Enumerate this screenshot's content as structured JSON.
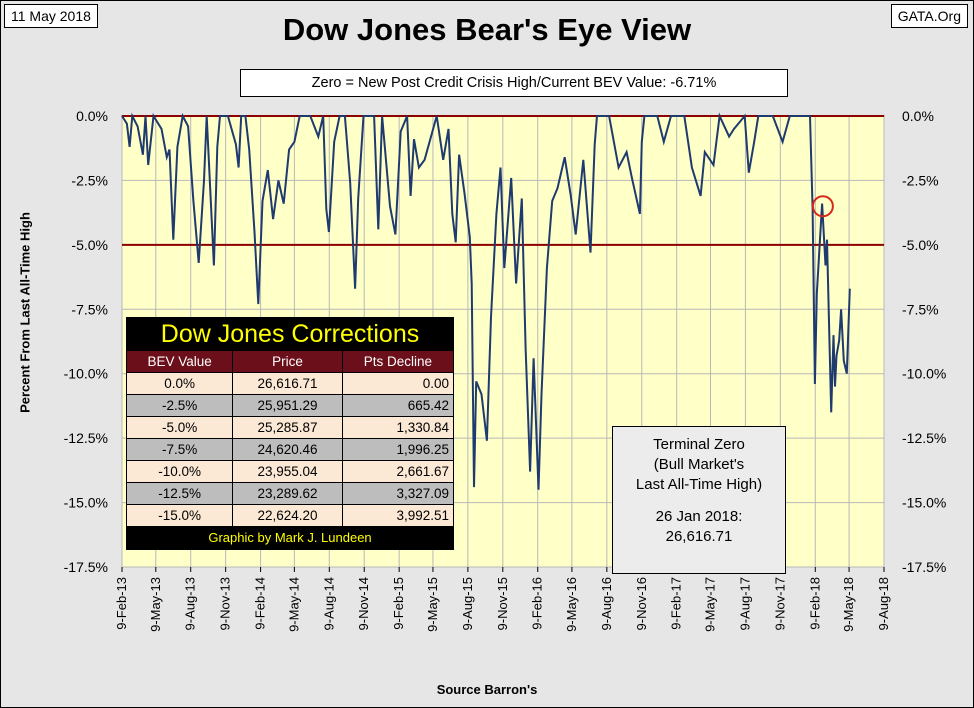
{
  "header": {
    "date": "11 May 2018",
    "source_tag": "GATA.Org",
    "title": "Dow Jones Bear's Eye View",
    "subtitle": "Zero = New Post Credit Crisis High/Current BEV Value:  -6.71%"
  },
  "axes": {
    "ylabel": "Percent From Last All-Time High",
    "xlabel": "Source Barron's",
    "y_ticks": [
      "0.0%",
      "-2.5%",
      "-5.0%",
      "-7.5%",
      "-10.0%",
      "-12.5%",
      "-15.0%",
      "-17.5%"
    ],
    "x_ticks": [
      "9-Feb-13",
      "9-May-13",
      "9-Aug-13",
      "9-Nov-13",
      "9-Feb-14",
      "9-May-14",
      "9-Aug-14",
      "9-Nov-14",
      "9-Feb-15",
      "9-May-15",
      "9-Aug-15",
      "9-Nov-15",
      "9-Feb-16",
      "9-May-16",
      "9-Aug-16",
      "9-Nov-16",
      "9-Feb-17",
      "9-May-17",
      "9-Aug-17",
      "9-Nov-17",
      "9-Feb-18",
      "9-May-18",
      "9-Aug-18"
    ]
  },
  "corrections_table": {
    "title": "Dow Jones Corrections",
    "headers": [
      "BEV Value",
      "Price",
      "Pts Decline"
    ],
    "rows": [
      [
        "0.0%",
        "26,616.71",
        "0.00"
      ],
      [
        "-2.5%",
        "25,951.29",
        "665.42"
      ],
      [
        "-5.0%",
        "25,285.87",
        "1,330.84"
      ],
      [
        "-7.5%",
        "24,620.46",
        "1,996.25"
      ],
      [
        "-10.0%",
        "23,955.04",
        "2,661.67"
      ],
      [
        "-12.5%",
        "23,289.62",
        "3,327.09"
      ],
      [
        "-15.0%",
        "22,624.20",
        "3,992.51"
      ]
    ],
    "footer": "Graphic by Mark J. Lundeen"
  },
  "terminal_zero": {
    "line1": "Terminal Zero",
    "line2": "(Bull Market's",
    "line3": "Last All-Time High)",
    "line4": "26 Jan 2018:",
    "line5": "26,616.71"
  },
  "colors": {
    "plot_bg": "#ffffc8",
    "line": "#1f3a6e",
    "ref_line": "#8b0000",
    "marker": "#d42a1a"
  },
  "chart_data": {
    "type": "line",
    "title": "Dow Jones Bear's Eye View",
    "xlabel": "Source Barron's",
    "ylabel": "Percent From Last All-Time High",
    "ylim": [
      -17.5,
      0
    ],
    "xlim": [
      "2013-02-09",
      "2018-08-09"
    ],
    "grid": true,
    "reference_lines": [
      0,
      -5
    ],
    "highlight": {
      "x": "2018-03-01",
      "y": -3.5
    },
    "series": [
      {
        "points": [
          [
            "2013-02-09",
            0.0
          ],
          [
            "2013-02-22",
            -0.3
          ],
          [
            "2013-03-01",
            -1.2
          ],
          [
            "2013-03-08",
            0.0
          ],
          [
            "2013-03-22",
            -0.4
          ],
          [
            "2013-04-05",
            -1.5
          ],
          [
            "2013-04-12",
            0.0
          ],
          [
            "2013-04-19",
            -1.9
          ],
          [
            "2013-05-03",
            0.0
          ],
          [
            "2013-05-24",
            -0.5
          ],
          [
            "2013-06-07",
            -1.6
          ],
          [
            "2013-06-14",
            -1.3
          ],
          [
            "2013-06-24",
            -4.8
          ],
          [
            "2013-07-05",
            -1.2
          ],
          [
            "2013-07-19",
            0.0
          ],
          [
            "2013-08-02",
            -0.4
          ],
          [
            "2013-08-16",
            -3.3
          ],
          [
            "2013-08-30",
            -5.7
          ],
          [
            "2013-09-13",
            -2.5
          ],
          [
            "2013-09-20",
            0.0
          ],
          [
            "2013-10-09",
            -5.8
          ],
          [
            "2013-10-18",
            -1.2
          ],
          [
            "2013-10-25",
            0.0
          ],
          [
            "2013-11-15",
            0.0
          ],
          [
            "2013-12-06",
            -1.1
          ],
          [
            "2013-12-13",
            -2.0
          ],
          [
            "2013-12-20",
            0.0
          ],
          [
            "2013-12-31",
            0.0
          ],
          [
            "2014-01-10",
            -1.3
          ],
          [
            "2014-01-24",
            -4.5
          ],
          [
            "2014-02-03",
            -7.3
          ],
          [
            "2014-02-14",
            -3.3
          ],
          [
            "2014-02-28",
            -2.1
          ],
          [
            "2014-03-14",
            -4.0
          ],
          [
            "2014-03-28",
            -2.5
          ],
          [
            "2014-04-11",
            -3.4
          ],
          [
            "2014-04-25",
            -1.3
          ],
          [
            "2014-05-09",
            -1.0
          ],
          [
            "2014-05-23",
            0.0
          ],
          [
            "2014-06-20",
            0.0
          ],
          [
            "2014-07-11",
            -0.8
          ],
          [
            "2014-07-24",
            0.0
          ],
          [
            "2014-08-01",
            -3.6
          ],
          [
            "2014-08-08",
            -4.5
          ],
          [
            "2014-08-22",
            -1.0
          ],
          [
            "2014-09-05",
            0.0
          ],
          [
            "2014-09-19",
            0.0
          ],
          [
            "2014-10-03",
            -2.6
          ],
          [
            "2014-10-16",
            -6.7
          ],
          [
            "2014-10-24",
            -3.2
          ],
          [
            "2014-11-07",
            0.0
          ],
          [
            "2014-12-05",
            0.0
          ],
          [
            "2014-12-16",
            -4.4
          ],
          [
            "2014-12-26",
            0.0
          ],
          [
            "2015-01-16",
            -3.5
          ],
          [
            "2015-01-30",
            -4.6
          ],
          [
            "2015-02-13",
            -0.6
          ],
          [
            "2015-03-02",
            0.0
          ],
          [
            "2015-03-11",
            -3.1
          ],
          [
            "2015-03-20",
            -0.9
          ],
          [
            "2015-04-02",
            -2.0
          ],
          [
            "2015-04-17",
            -1.7
          ],
          [
            "2015-05-19",
            0.0
          ],
          [
            "2015-06-05",
            -1.7
          ],
          [
            "2015-06-19",
            -0.5
          ],
          [
            "2015-06-29",
            -3.8
          ],
          [
            "2015-07-08",
            -4.9
          ],
          [
            "2015-07-17",
            -1.5
          ],
          [
            "2015-07-31",
            -3.0
          ],
          [
            "2015-08-14",
            -4.7
          ],
          [
            "2015-08-19",
            -6.5
          ],
          [
            "2015-08-25",
            -14.4
          ],
          [
            "2015-08-31",
            -10.3
          ],
          [
            "2015-09-14",
            -10.8
          ],
          [
            "2015-09-28",
            -12.6
          ],
          [
            "2015-10-09",
            -7.8
          ],
          [
            "2015-10-23",
            -3.8
          ],
          [
            "2015-11-03",
            -2.0
          ],
          [
            "2015-11-13",
            -5.9
          ],
          [
            "2015-12-01",
            -2.4
          ],
          [
            "2015-12-14",
            -6.5
          ],
          [
            "2015-12-29",
            -3.2
          ],
          [
            "2016-01-08",
            -9.0
          ],
          [
            "2016-01-20",
            -13.8
          ],
          [
            "2016-01-29",
            -9.4
          ],
          [
            "2016-02-11",
            -14.5
          ],
          [
            "2016-02-19",
            -10.8
          ],
          [
            "2016-03-04",
            -5.9
          ],
          [
            "2016-03-18",
            -3.3
          ],
          [
            "2016-04-01",
            -2.8
          ],
          [
            "2016-04-20",
            -1.6
          ],
          [
            "2016-05-06",
            -3.1
          ],
          [
            "2016-05-19",
            -4.6
          ],
          [
            "2016-06-08",
            -1.7
          ],
          [
            "2016-06-27",
            -5.3
          ],
          [
            "2016-07-08",
            -1.1
          ],
          [
            "2016-07-14",
            0.0
          ],
          [
            "2016-08-15",
            0.0
          ],
          [
            "2016-09-09",
            -2.0
          ],
          [
            "2016-09-30",
            -1.4
          ],
          [
            "2016-10-14",
            -2.4
          ],
          [
            "2016-11-04",
            -3.8
          ],
          [
            "2016-11-09",
            -1.0
          ],
          [
            "2016-11-16",
            0.0
          ],
          [
            "2016-12-20",
            0.0
          ],
          [
            "2017-01-06",
            -1.0
          ],
          [
            "2017-01-25",
            0.0
          ],
          [
            "2017-03-01",
            0.0
          ],
          [
            "2017-03-21",
            -2.0
          ],
          [
            "2017-04-13",
            -3.1
          ],
          [
            "2017-04-24",
            -1.4
          ],
          [
            "2017-05-17",
            -1.9
          ],
          [
            "2017-06-02",
            0.0
          ],
          [
            "2017-06-27",
            -0.8
          ],
          [
            "2017-07-10",
            -0.5
          ],
          [
            "2017-08-07",
            0.0
          ],
          [
            "2017-08-18",
            -2.2
          ],
          [
            "2017-09-01",
            -1.0
          ],
          [
            "2017-09-12",
            0.0
          ],
          [
            "2017-10-20",
            0.0
          ],
          [
            "2017-11-15",
            -1.0
          ],
          [
            "2017-12-04",
            0.0
          ],
          [
            "2018-01-26",
            0.0
          ],
          [
            "2018-02-02",
            -3.6
          ],
          [
            "2018-02-08",
            -10.4
          ],
          [
            "2018-02-13",
            -6.9
          ],
          [
            "2018-02-27",
            -3.4
          ],
          [
            "2018-03-08",
            -5.8
          ],
          [
            "2018-03-12",
            -4.8
          ],
          [
            "2018-03-23",
            -11.5
          ],
          [
            "2018-03-29",
            -8.5
          ],
          [
            "2018-04-02",
            -10.5
          ],
          [
            "2018-04-06",
            -9.3
          ],
          [
            "2018-04-13",
            -8.7
          ],
          [
            "2018-04-18",
            -7.5
          ],
          [
            "2018-04-25",
            -9.5
          ],
          [
            "2018-05-03",
            -10.0
          ],
          [
            "2018-05-11",
            -6.7
          ]
        ]
      }
    ]
  }
}
